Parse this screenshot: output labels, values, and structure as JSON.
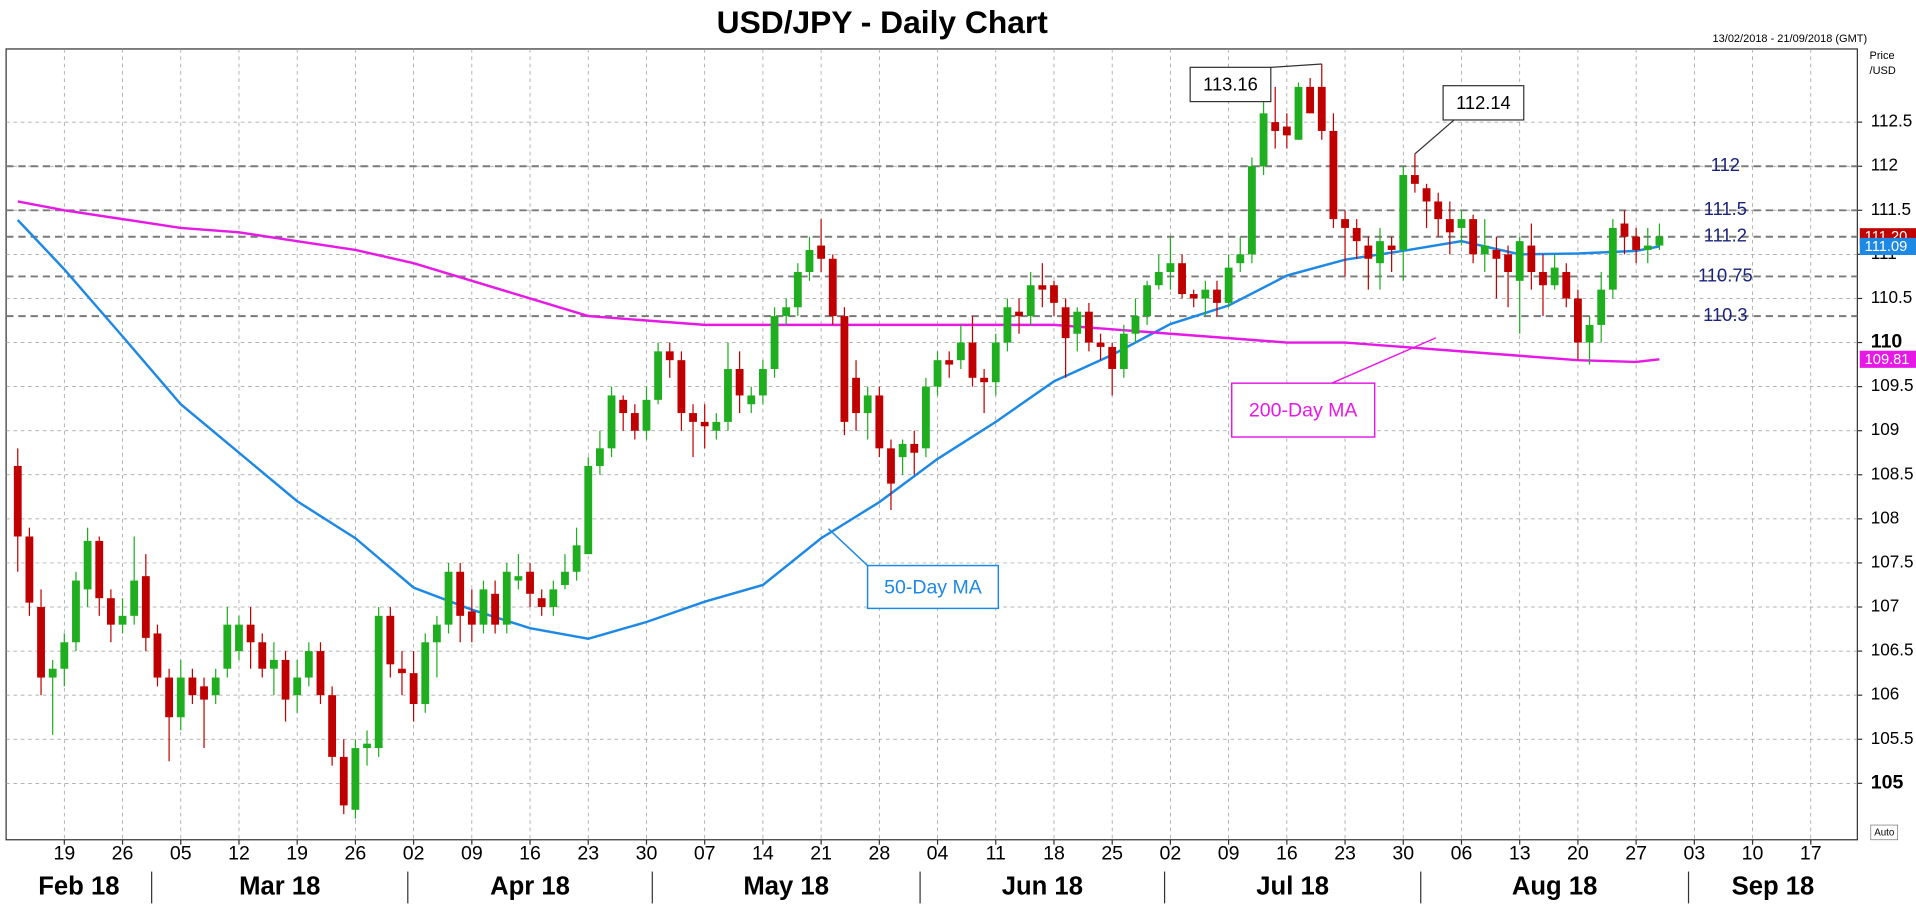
{
  "chart_data": {
    "type": "candlestick",
    "title": "USD/JPY - Daily Chart",
    "date_range": "13/02/2018 - 21/09/2018 (GMT)",
    "y_label": [
      "Price",
      "/USD"
    ],
    "scale_mode": "Auto",
    "up_color": "#1fae1f",
    "down_color": "#c00000",
    "grid": true,
    "xlim": [
      "2018-02-12",
      "2018-09-21"
    ],
    "ylim": [
      104.36,
      113.33
    ],
    "yticks": [
      105,
      105.5,
      106,
      106.5,
      107,
      107.5,
      108,
      108.5,
      109,
      109.5,
      110,
      110.5,
      111,
      111.5,
      112,
      112.5
    ],
    "xticks": [
      {
        "value": "2018-02-19",
        "label": "19"
      },
      {
        "value": "2018-02-26",
        "label": "26"
      },
      {
        "value": "2018-03-05",
        "label": "05"
      },
      {
        "value": "2018-03-12",
        "label": "12"
      },
      {
        "value": "2018-03-19",
        "label": "19"
      },
      {
        "value": "2018-03-26",
        "label": "26"
      },
      {
        "value": "2018-04-02",
        "label": "02"
      },
      {
        "value": "2018-04-09",
        "label": "09"
      },
      {
        "value": "2018-04-16",
        "label": "16"
      },
      {
        "value": "2018-04-23",
        "label": "23"
      },
      {
        "value": "2018-04-30",
        "label": "30"
      },
      {
        "value": "2018-05-07",
        "label": "07"
      },
      {
        "value": "2018-05-14",
        "label": "14"
      },
      {
        "value": "2018-05-21",
        "label": "21"
      },
      {
        "value": "2018-05-28",
        "label": "28"
      },
      {
        "value": "2018-06-04",
        "label": "04"
      },
      {
        "value": "2018-06-11",
        "label": "11"
      },
      {
        "value": "2018-06-18",
        "label": "18"
      },
      {
        "value": "2018-06-25",
        "label": "25"
      },
      {
        "value": "2018-07-02",
        "label": "02"
      },
      {
        "value": "2018-07-09",
        "label": "09"
      },
      {
        "value": "2018-07-16",
        "label": "16"
      },
      {
        "value": "2018-07-23",
        "label": "23"
      },
      {
        "value": "2018-07-30",
        "label": "30"
      },
      {
        "value": "2018-08-06",
        "label": "06"
      },
      {
        "value": "2018-08-13",
        "label": "13"
      },
      {
        "value": "2018-08-20",
        "label": "20"
      },
      {
        "value": "2018-08-27",
        "label": "27"
      },
      {
        "value": "2018-09-03",
        "label": "03"
      },
      {
        "value": "2018-09-10",
        "label": "10"
      },
      {
        "value": "2018-09-17",
        "label": "17"
      }
    ],
    "months": [
      {
        "value": "2018-02-01",
        "label": "Feb 18"
      },
      {
        "value": "2018-03-01",
        "label": "Mar 18"
      },
      {
        "value": "2018-04-01",
        "label": "Apr 18"
      },
      {
        "value": "2018-05-01",
        "label": "May 18"
      },
      {
        "value": "2018-06-01",
        "label": "Jun 18"
      },
      {
        "value": "2018-07-01",
        "label": "Jul 18"
      },
      {
        "value": "2018-08-01",
        "label": "Aug 18"
      },
      {
        "value": "2018-09-01",
        "label": "Sep 18"
      }
    ],
    "x": [
      "2018-02-13",
      "2018-02-14",
      "2018-02-15",
      "2018-02-16",
      "2018-02-19",
      "2018-02-20",
      "2018-02-21",
      "2018-02-22",
      "2018-02-23",
      "2018-02-26",
      "2018-02-27",
      "2018-02-28",
      "2018-03-01",
      "2018-03-02",
      "2018-03-05",
      "2018-03-06",
      "2018-03-07",
      "2018-03-08",
      "2018-03-09",
      "2018-03-12",
      "2018-03-13",
      "2018-03-14",
      "2018-03-15",
      "2018-03-16",
      "2018-03-19",
      "2018-03-20",
      "2018-03-21",
      "2018-03-22",
      "2018-03-23",
      "2018-03-26",
      "2018-03-27",
      "2018-03-28",
      "2018-03-29",
      "2018-03-30",
      "2018-04-02",
      "2018-04-03",
      "2018-04-04",
      "2018-04-05",
      "2018-04-06",
      "2018-04-09",
      "2018-04-10",
      "2018-04-11",
      "2018-04-12",
      "2018-04-13",
      "2018-04-16",
      "2018-04-17",
      "2018-04-18",
      "2018-04-19",
      "2018-04-20",
      "2018-04-23",
      "2018-04-24",
      "2018-04-25",
      "2018-04-26",
      "2018-04-27",
      "2018-04-30",
      "2018-05-01",
      "2018-05-02",
      "2018-05-03",
      "2018-05-04",
      "2018-05-07",
      "2018-05-08",
      "2018-05-09",
      "2018-05-10",
      "2018-05-11",
      "2018-05-14",
      "2018-05-15",
      "2018-05-16",
      "2018-05-17",
      "2018-05-18",
      "2018-05-21",
      "2018-05-22",
      "2018-05-23",
      "2018-05-24",
      "2018-05-25",
      "2018-05-28",
      "2018-05-29",
      "2018-05-30",
      "2018-05-31",
      "2018-06-01",
      "2018-06-04",
      "2018-06-05",
      "2018-06-06",
      "2018-06-07",
      "2018-06-08",
      "2018-06-11",
      "2018-06-12",
      "2018-06-13",
      "2018-06-14",
      "2018-06-15",
      "2018-06-18",
      "2018-06-19",
      "2018-06-20",
      "2018-06-21",
      "2018-06-22",
      "2018-06-25",
      "2018-06-26",
      "2018-06-27",
      "2018-06-28",
      "2018-06-29",
      "2018-07-02",
      "2018-07-03",
      "2018-07-04",
      "2018-07-05",
      "2018-07-06",
      "2018-07-09",
      "2018-07-10",
      "2018-07-11",
      "2018-07-12",
      "2018-07-13",
      "2018-07-16",
      "2018-07-17",
      "2018-07-18",
      "2018-07-19",
      "2018-07-20",
      "2018-07-23",
      "2018-07-24",
      "2018-07-25",
      "2018-07-26",
      "2018-07-27",
      "2018-07-30",
      "2018-07-31",
      "2018-08-01",
      "2018-08-02",
      "2018-08-03",
      "2018-08-06",
      "2018-08-07",
      "2018-08-08",
      "2018-08-09",
      "2018-08-10",
      "2018-08-13",
      "2018-08-14",
      "2018-08-15",
      "2018-08-16",
      "2018-08-17",
      "2018-08-20",
      "2018-08-21",
      "2018-08-22",
      "2018-08-23",
      "2018-08-24",
      "2018-08-27",
      "2018-08-28",
      "2018-08-29"
    ],
    "open": [
      108.6,
      107.8,
      107.0,
      106.2,
      106.3,
      106.6,
      107.2,
      107.75,
      107.1,
      106.8,
      106.9,
      107.35,
      106.7,
      106.2,
      105.75,
      106.2,
      106.1,
      106.0,
      106.3,
      106.5,
      106.8,
      106.6,
      106.3,
      106.4,
      106.0,
      106.2,
      106.5,
      106.0,
      105.3,
      104.7,
      105.4,
      105.4,
      106.9,
      106.3,
      106.25,
      105.9,
      106.6,
      106.8,
      107.4,
      106.95,
      106.8,
      107.15,
      106.8,
      107.3,
      107.4,
      107.1,
      107.0,
      107.25,
      107.4,
      107.6,
      108.6,
      108.8,
      109.35,
      109.2,
      109.0,
      109.35,
      109.9,
      109.8,
      109.2,
      109.1,
      109.0,
      109.1,
      109.7,
      109.3,
      109.4,
      109.7,
      110.3,
      110.4,
      110.8,
      111.1,
      110.95,
      110.3,
      109.6,
      109.2,
      109.4,
      108.8,
      108.7,
      108.85,
      108.8,
      109.5,
      109.8,
      109.8,
      110.0,
      109.6,
      109.55,
      110.0,
      110.35,
      110.3,
      110.65,
      110.65,
      110.4,
      110.1,
      110.35,
      110.0,
      109.95,
      109.7,
      110.1,
      110.3,
      110.65,
      110.8,
      110.9,
      110.55,
      110.5,
      110.6,
      110.45,
      110.9,
      111.0,
      112.0,
      112.5,
      112.45,
      112.3,
      112.9,
      112.9,
      112.4,
      111.4,
      111.3,
      111.1,
      110.9,
      111.1,
      111.05,
      111.9,
      111.75,
      111.6,
      111.4,
      111.3,
      111.4,
      111.0,
      111.05,
      111.0,
      110.7,
      111.1,
      110.8,
      110.65,
      110.8,
      110.5,
      110.0,
      110.2,
      110.6,
      111.35,
      111.2,
      111.05,
      111.1
    ],
    "high": [
      108.8,
      107.9,
      107.2,
      106.4,
      106.7,
      107.4,
      107.9,
      107.8,
      107.2,
      107.1,
      107.8,
      107.6,
      106.8,
      106.3,
      106.4,
      106.3,
      106.2,
      106.3,
      107.0,
      106.9,
      107.0,
      106.7,
      106.6,
      106.5,
      106.4,
      106.6,
      106.6,
      106.1,
      105.5,
      105.5,
      105.6,
      107.0,
      107.0,
      106.5,
      106.5,
      106.7,
      106.9,
      107.5,
      107.5,
      107.2,
      107.3,
      107.3,
      107.5,
      107.6,
      107.5,
      107.2,
      107.3,
      107.6,
      107.9,
      108.7,
      109.0,
      109.5,
      109.4,
      109.3,
      109.5,
      110.0,
      110.0,
      109.9,
      109.3,
      109.3,
      109.2,
      110.0,
      109.9,
      109.5,
      109.8,
      110.4,
      110.5,
      110.9,
      111.2,
      111.4,
      111.0,
      110.4,
      109.8,
      109.5,
      109.5,
      108.9,
      108.9,
      109.0,
      109.6,
      109.9,
      109.9,
      110.2,
      110.3,
      109.7,
      110.1,
      110.5,
      110.5,
      110.8,
      110.9,
      110.7,
      110.5,
      110.4,
      110.45,
      110.1,
      110.0,
      110.2,
      110.5,
      110.7,
      111.0,
      111.2,
      111.0,
      110.6,
      110.7,
      110.7,
      111.0,
      111.2,
      112.1,
      112.8,
      112.9,
      112.6,
      112.95,
      113.0,
      113.16,
      112.6,
      111.5,
      111.4,
      111.2,
      111.3,
      111.2,
      112.0,
      112.14,
      111.8,
      111.7,
      111.6,
      111.5,
      111.45,
      111.4,
      111.2,
      111.1,
      111.2,
      111.35,
      111.0,
      111.0,
      110.9,
      110.6,
      110.3,
      110.8,
      111.4,
      111.5,
      111.3,
      111.3,
      111.35
    ],
    "low": [
      107.4,
      106.9,
      106.0,
      105.55,
      106.1,
      106.5,
      107.0,
      106.9,
      106.6,
      106.7,
      106.8,
      106.5,
      106.1,
      105.25,
      105.6,
      105.9,
      105.4,
      105.9,
      106.2,
      106.4,
      106.3,
      106.2,
      106.0,
      105.7,
      105.8,
      106.1,
      105.9,
      105.2,
      104.65,
      104.6,
      105.2,
      105.3,
      106.2,
      106.0,
      105.7,
      105.8,
      106.2,
      106.7,
      106.6,
      106.6,
      106.7,
      106.7,
      106.7,
      107.2,
      107.0,
      106.9,
      106.9,
      107.2,
      107.3,
      107.6,
      108.5,
      108.7,
      109.0,
      108.9,
      108.9,
      109.3,
      109.6,
      109.0,
      108.7,
      108.8,
      108.9,
      109.0,
      109.2,
      109.2,
      109.3,
      109.6,
      110.2,
      110.3,
      110.7,
      110.8,
      110.2,
      108.95,
      109.0,
      108.9,
      108.7,
      108.1,
      108.5,
      108.5,
      108.7,
      109.4,
      109.6,
      109.7,
      109.5,
      109.2,
      109.4,
      109.9,
      110.1,
      110.2,
      110.4,
      110.3,
      109.6,
      109.9,
      109.9,
      109.8,
      109.4,
      109.6,
      110.0,
      110.2,
      110.6,
      110.6,
      110.5,
      110.4,
      110.3,
      110.3,
      110.4,
      110.8,
      110.9,
      111.9,
      112.2,
      112.2,
      112.3,
      112.6,
      112.3,
      111.3,
      110.75,
      110.95,
      110.6,
      110.6,
      110.8,
      110.7,
      111.7,
      111.3,
      111.2,
      111.0,
      111.1,
      110.9,
      110.8,
      110.5,
      110.4,
      110.1,
      110.6,
      110.3,
      110.6,
      110.4,
      109.8,
      109.75,
      110.0,
      110.5,
      111.0,
      110.9,
      110.9,
      111.05
    ],
    "close": [
      107.8,
      107.05,
      106.2,
      106.3,
      106.6,
      107.3,
      107.75,
      107.1,
      106.8,
      106.9,
      107.3,
      106.65,
      106.2,
      105.75,
      106.2,
      106.0,
      105.95,
      106.2,
      106.8,
      106.8,
      106.6,
      106.3,
      106.4,
      105.95,
      106.2,
      106.5,
      106.0,
      105.3,
      104.75,
      105.4,
      105.45,
      106.9,
      106.35,
      106.25,
      105.9,
      106.6,
      106.8,
      107.4,
      106.9,
      106.8,
      107.2,
      106.8,
      107.4,
      107.35,
      107.15,
      107.0,
      107.2,
      107.4,
      107.7,
      108.6,
      108.8,
      109.4,
      109.2,
      109.0,
      109.35,
      109.9,
      109.8,
      109.2,
      109.1,
      109.05,
      109.1,
      109.7,
      109.4,
      109.4,
      109.7,
      110.3,
      110.4,
      110.8,
      111.05,
      110.95,
      110.3,
      109.1,
      109.2,
      109.4,
      108.8,
      108.4,
      108.85,
      108.75,
      109.5,
      109.8,
      109.75,
      110.0,
      109.6,
      109.55,
      110.0,
      110.4,
      110.3,
      110.65,
      110.6,
      110.45,
      110.05,
      110.35,
      110.0,
      109.95,
      109.7,
      110.1,
      110.3,
      110.65,
      110.8,
      110.9,
      110.55,
      110.5,
      110.6,
      110.45,
      110.85,
      111.0,
      112.0,
      112.6,
      112.4,
      112.35,
      112.9,
      112.6,
      112.4,
      111.4,
      111.3,
      111.15,
      110.95,
      111.15,
      111.05,
      111.9,
      111.8,
      111.6,
      111.4,
      111.25,
      111.4,
      111.0,
      111.1,
      110.95,
      110.8,
      111.15,
      110.8,
      110.65,
      110.85,
      110.5,
      110.0,
      110.2,
      110.6,
      111.3,
      111.2,
      111.05,
      111.1,
      111.2
    ],
    "series": [
      {
        "name": "50-Day MA",
        "color": "#1e88e5",
        "x": [
          "2018-02-13",
          "2018-02-19",
          "2018-02-26",
          "2018-03-05",
          "2018-03-12",
          "2018-03-19",
          "2018-03-26",
          "2018-04-02",
          "2018-04-09",
          "2018-04-16",
          "2018-04-23",
          "2018-04-30",
          "2018-05-07",
          "2018-05-14",
          "2018-05-21",
          "2018-05-28",
          "2018-06-04",
          "2018-06-11",
          "2018-06-18",
          "2018-06-25",
          "2018-07-02",
          "2018-07-09",
          "2018-07-16",
          "2018-07-23",
          "2018-07-30",
          "2018-08-06",
          "2018-08-13",
          "2018-08-20",
          "2018-08-27",
          "2018-08-29"
        ],
        "values": [
          111.39,
          110.83,
          110.07,
          109.3,
          108.75,
          108.2,
          107.78,
          107.22,
          106.97,
          106.76,
          106.64,
          106.83,
          107.06,
          107.25,
          107.78,
          108.19,
          108.68,
          109.1,
          109.56,
          109.86,
          110.21,
          110.42,
          110.76,
          110.94,
          111.04,
          111.15,
          111.0,
          111.01,
          111.04,
          111.09
        ]
      },
      {
        "name": "200-Day MA",
        "color": "#e619e6",
        "x": [
          "2018-02-13",
          "2018-02-19",
          "2018-02-26",
          "2018-03-05",
          "2018-03-12",
          "2018-03-19",
          "2018-03-26",
          "2018-04-02",
          "2018-04-09",
          "2018-04-16",
          "2018-04-23",
          "2018-04-30",
          "2018-05-07",
          "2018-05-14",
          "2018-05-21",
          "2018-05-28",
          "2018-06-04",
          "2018-06-11",
          "2018-06-18",
          "2018-06-25",
          "2018-07-02",
          "2018-07-09",
          "2018-07-16",
          "2018-07-23",
          "2018-07-30",
          "2018-08-06",
          "2018-08-13",
          "2018-08-20",
          "2018-08-27",
          "2018-08-29"
        ],
        "values": [
          111.6,
          111.5,
          111.4,
          111.3,
          111.25,
          111.15,
          111.05,
          110.9,
          110.7,
          110.5,
          110.3,
          110.25,
          110.2,
          110.2,
          110.2,
          110.2,
          110.2,
          110.2,
          110.2,
          110.15,
          110.1,
          110.05,
          110.0,
          110.0,
          109.95,
          109.9,
          109.85,
          109.8,
          109.78,
          109.81
        ]
      }
    ],
    "levels": {
      "color": "#1a237e",
      "values": [
        112,
        111.5,
        111.2,
        110.75,
        110.3
      ]
    },
    "annotations": [
      113.16,
      112.14
    ],
    "price_tags": [
      {
        "value": 111.2,
        "label": "111.20",
        "color": "#c00000"
      },
      {
        "value": 111.09,
        "label": "111.09",
        "color": "#1e88e5"
      },
      {
        "value": 109.81,
        "label": "109.81",
        "color": "#e619e6"
      }
    ]
  }
}
